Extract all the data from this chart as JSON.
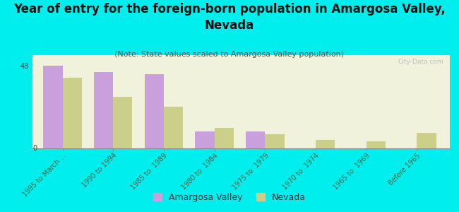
{
  "title": "Year of entry for the foreign-born population in Amargosa Valley,\nNevada",
  "subtitle": "(Note: State values scaled to Amargosa Valley population)",
  "categories": [
    "1995 to March ...",
    "1990 to 1994",
    "1985 to  1989",
    "1980 to  1984",
    "1975 to  1979",
    "1970 to  1974",
    "1965 to  1969",
    "Before 1965"
  ],
  "amargosa_values": [
    48,
    44,
    43,
    10,
    10,
    0,
    0,
    0
  ],
  "nevada_values": [
    41,
    30,
    24,
    12,
    8,
    5,
    4,
    9
  ],
  "amargosa_color": "#c9a0dc",
  "nevada_color": "#cccf8a",
  "background_color": "#00eeee",
  "plot_bg_color": "#f0f2dc",
  "ylabel_value": 48,
  "ylim": [
    0,
    54
  ],
  "yticks": [
    0,
    48
  ],
  "bar_width": 0.38,
  "title_fontsize": 12,
  "subtitle_fontsize": 8,
  "tick_fontsize": 7,
  "legend_fontsize": 9,
  "watermark": "City-Data.com"
}
